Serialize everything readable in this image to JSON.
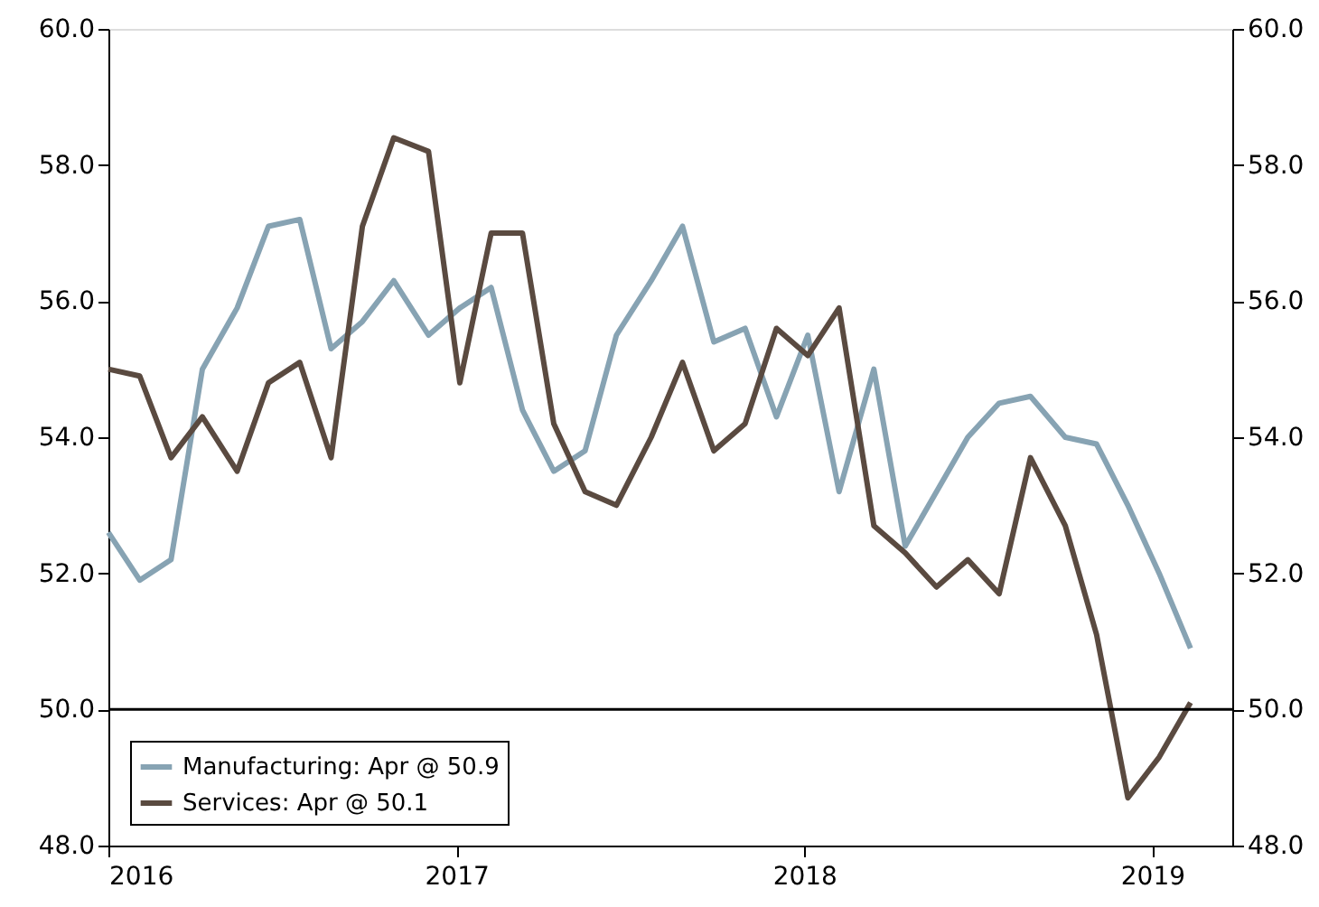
{
  "chart_data": {
    "type": "line",
    "x": [
      2016.0,
      2016.09,
      2016.18,
      2016.27,
      2016.37,
      2016.46,
      2016.55,
      2016.64,
      2016.73,
      2016.82,
      2016.92,
      2017.01,
      2017.1,
      2017.19,
      2017.28,
      2017.37,
      2017.46,
      2017.56,
      2017.65,
      2017.74,
      2017.83,
      2017.92,
      2018.01,
      2018.1,
      2018.2,
      2018.29,
      2018.38,
      2018.47,
      2018.56,
      2018.65,
      2018.75,
      2018.84,
      2018.93,
      2019.02,
      2019.11
    ],
    "series": [
      {
        "name": "Manufacturing: Apr @ 50.9",
        "color": "#87a3b3",
        "values": [
          52.6,
          51.9,
          52.2,
          55.0,
          55.9,
          57.1,
          57.2,
          55.3,
          55.7,
          56.3,
          55.5,
          55.9,
          56.2,
          54.4,
          53.5,
          53.8,
          55.5,
          56.3,
          57.1,
          55.4,
          55.6,
          54.3,
          55.5,
          53.2,
          55.0,
          52.4,
          53.2,
          54.0,
          54.5,
          54.6,
          54.0,
          53.9,
          53.0,
          52.0,
          50.9
        ]
      },
      {
        "name": "Services: Apr @ 50.1",
        "color": "#5a4a40",
        "values": [
          55.0,
          54.9,
          53.7,
          54.3,
          53.5,
          54.8,
          55.1,
          53.7,
          57.1,
          58.4,
          58.2,
          54.8,
          57.0,
          57.0,
          54.2,
          53.2,
          53.0,
          54.0,
          55.1,
          53.8,
          54.2,
          55.6,
          55.2,
          55.9,
          52.7,
          52.3,
          51.8,
          52.2,
          51.7,
          53.7,
          52.7,
          51.1,
          48.7,
          49.3,
          50.1
        ]
      }
    ],
    "xlim": [
      2016,
      2019.23
    ],
    "xticks": [
      2016,
      2017,
      2018,
      2019
    ],
    "ylim": [
      48,
      60
    ],
    "yticks": [
      {
        "value": 48,
        "label": "48.0"
      },
      {
        "value": 50,
        "label": "50.0"
      },
      {
        "value": 52,
        "label": "52.0"
      },
      {
        "value": 54,
        "label": "54.0"
      },
      {
        "value": 56,
        "label": "56.0"
      },
      {
        "value": 58,
        "label": "58.0"
      },
      {
        "value": 60,
        "label": "60.0"
      }
    ],
    "y2lim": [
      48,
      60
    ],
    "y2ticks": [
      {
        "value": 48,
        "label": "48.0"
      },
      {
        "value": 50,
        "label": "50.0"
      },
      {
        "value": 52,
        "label": "52.0"
      },
      {
        "value": 54,
        "label": "54.0"
      },
      {
        "value": 56,
        "label": "56.0"
      },
      {
        "value": 58,
        "label": "58.0"
      },
      {
        "value": 60,
        "label": "60.0"
      }
    ],
    "ref_lines": [
      {
        "axis": "y",
        "value": 50,
        "color": "#000000"
      }
    ],
    "legend": "bottom left",
    "grid": false,
    "marker": "none",
    "line_style": "solid"
  }
}
